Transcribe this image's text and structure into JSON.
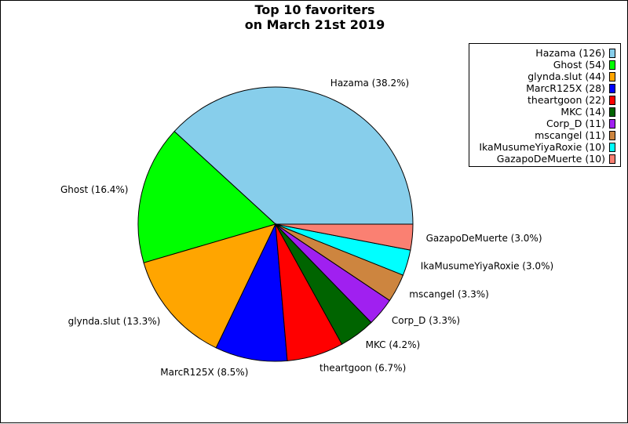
{
  "chart_data": {
    "type": "pie",
    "title": "Top 10 favoriters\non March 21st 2019",
    "categories": [
      "Hazama",
      "Ghost",
      "glynda.slut",
      "MarcR125X",
      "theartgoon",
      "MKC",
      "Corp_D",
      "mscangel",
      "IkaMusumeYiyaRoxie",
      "GazapoDeMuerte"
    ],
    "values": [
      126,
      54,
      44,
      28,
      22,
      14,
      11,
      11,
      10,
      10
    ],
    "slice_labels": [
      "Hazama (38.2%)",
      "Ghost (16.4%)",
      "glynda.slut (13.3%)",
      "MarcR125X (8.5%)",
      "theartgoon (6.7%)",
      "MKC (4.2%)",
      "Corp_D (3.3%)",
      "mscangel (3.3%)",
      "IkaMusumeYiyaRoxie (3.0%)",
      "GazapoDeMuerte (3.0%)"
    ],
    "legend_entries": [
      "Hazama (126)",
      "Ghost (54)",
      "glynda.slut (44)",
      "MarcR125X (28)",
      "theartgoon (22)",
      "MKC (14)",
      "Corp_D (11)",
      "mscangel (11)",
      "IkaMusumeYiyaRoxie (10)",
      "GazapoDeMuerte (10)"
    ],
    "colors": [
      "#87CEEB",
      "#00FF00",
      "#FFA500",
      "#0000FF",
      "#FF0000",
      "#006400",
      "#A020F0",
      "#CD853F",
      "#00FFFF",
      "#FA8072"
    ],
    "start_angle_deg": 0,
    "direction": "counterclockwise",
    "legend_position": "upper-right"
  }
}
